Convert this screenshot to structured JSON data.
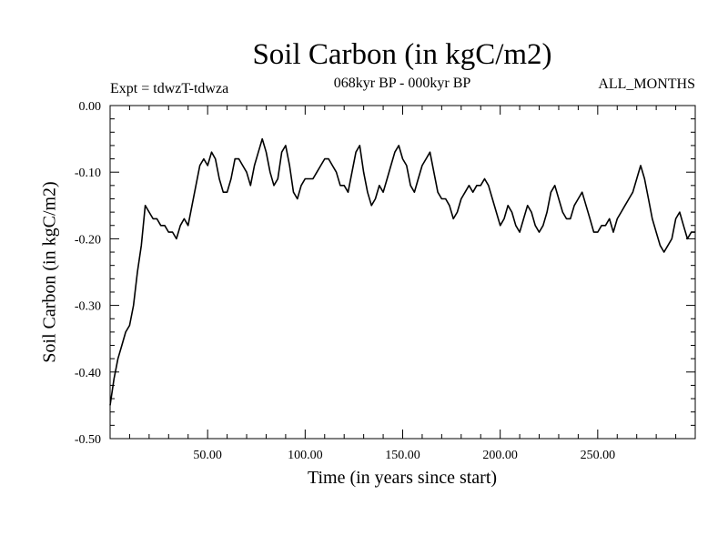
{
  "chart_data": {
    "type": "line",
    "title": "Soil Carbon (in kgC/m2)",
    "subtitle_left": "Expt = tdwzT-tdwza",
    "subtitle_center": "068kyr BP - 000kyr BP",
    "subtitle_right": "ALL_MONTHS",
    "xlabel": "Time (in years since start)",
    "ylabel": "Soil Carbon (in kgC/m2)",
    "xlim": [
      0,
      300
    ],
    "ylim": [
      -0.5,
      0.0
    ],
    "xticks": [
      50,
      100,
      150,
      200,
      250
    ],
    "xtick_labels": [
      "50.00",
      "100.00",
      "150.00",
      "200.00",
      "250.00"
    ],
    "yticks": [
      0.0,
      -0.1,
      -0.2,
      -0.3,
      -0.4,
      -0.5
    ],
    "ytick_labels": [
      "0.00",
      "-0.10",
      "-0.20",
      "-0.30",
      "-0.40",
      "-0.50"
    ],
    "grid": false,
    "series": [
      {
        "name": "Soil Carbon",
        "x": [
          0,
          2,
          4,
          6,
          8,
          10,
          12,
          14,
          16,
          18,
          20,
          22,
          24,
          26,
          28,
          30,
          32,
          34,
          36,
          38,
          40,
          42,
          44,
          46,
          48,
          50,
          52,
          54,
          56,
          58,
          60,
          62,
          64,
          66,
          68,
          70,
          72,
          74,
          76,
          78,
          80,
          82,
          84,
          86,
          88,
          90,
          92,
          94,
          96,
          98,
          100,
          102,
          104,
          106,
          108,
          110,
          112,
          114,
          116,
          118,
          120,
          122,
          124,
          126,
          128,
          130,
          132,
          134,
          136,
          138,
          140,
          142,
          144,
          146,
          148,
          150,
          152,
          154,
          156,
          158,
          160,
          162,
          164,
          166,
          168,
          170,
          172,
          174,
          176,
          178,
          180,
          182,
          184,
          186,
          188,
          190,
          192,
          194,
          196,
          198,
          200,
          202,
          204,
          206,
          208,
          210,
          212,
          214,
          216,
          218,
          220,
          222,
          224,
          226,
          228,
          230,
          232,
          234,
          236,
          238,
          240,
          242,
          244,
          246,
          248,
          250,
          252,
          254,
          256,
          258,
          260,
          262,
          264,
          266,
          268,
          270,
          272,
          274,
          276,
          278,
          280,
          282,
          284,
          286,
          288,
          290,
          292,
          294,
          296,
          298,
          300
        ],
        "values": [
          -0.45,
          -0.41,
          -0.38,
          -0.36,
          -0.34,
          -0.33,
          -0.3,
          -0.25,
          -0.21,
          -0.15,
          -0.16,
          -0.17,
          -0.17,
          -0.18,
          -0.18,
          -0.19,
          -0.19,
          -0.2,
          -0.18,
          -0.17,
          -0.18,
          -0.15,
          -0.12,
          -0.09,
          -0.08,
          -0.09,
          -0.07,
          -0.08,
          -0.11,
          -0.13,
          -0.13,
          -0.11,
          -0.08,
          -0.08,
          -0.09,
          -0.1,
          -0.12,
          -0.09,
          -0.07,
          -0.05,
          -0.07,
          -0.1,
          -0.12,
          -0.11,
          -0.07,
          -0.06,
          -0.09,
          -0.13,
          -0.14,
          -0.12,
          -0.11,
          -0.11,
          -0.11,
          -0.1,
          -0.09,
          -0.08,
          -0.08,
          -0.09,
          -0.1,
          -0.12,
          -0.12,
          -0.13,
          -0.1,
          -0.07,
          -0.06,
          -0.1,
          -0.13,
          -0.15,
          -0.14,
          -0.12,
          -0.13,
          -0.11,
          -0.09,
          -0.07,
          -0.06,
          -0.08,
          -0.09,
          -0.12,
          -0.13,
          -0.11,
          -0.09,
          -0.08,
          -0.07,
          -0.1,
          -0.13,
          -0.14,
          -0.14,
          -0.15,
          -0.17,
          -0.16,
          -0.14,
          -0.13,
          -0.12,
          -0.13,
          -0.12,
          -0.12,
          -0.11,
          -0.12,
          -0.14,
          -0.16,
          -0.18,
          -0.17,
          -0.15,
          -0.16,
          -0.18,
          -0.19,
          -0.17,
          -0.15,
          -0.16,
          -0.18,
          -0.19,
          -0.18,
          -0.16,
          -0.13,
          -0.12,
          -0.14,
          -0.16,
          -0.17,
          -0.17,
          -0.15,
          -0.14,
          -0.13,
          -0.15,
          -0.17,
          -0.19,
          -0.19,
          -0.18,
          -0.18,
          -0.17,
          -0.19,
          -0.17,
          -0.16,
          -0.15,
          -0.14,
          -0.13,
          -0.11,
          -0.09,
          -0.11,
          -0.14,
          -0.17,
          -0.19,
          -0.21,
          -0.22,
          -0.21,
          -0.2,
          -0.17,
          -0.16,
          -0.18,
          -0.2,
          -0.19,
          -0.19
        ]
      }
    ]
  }
}
